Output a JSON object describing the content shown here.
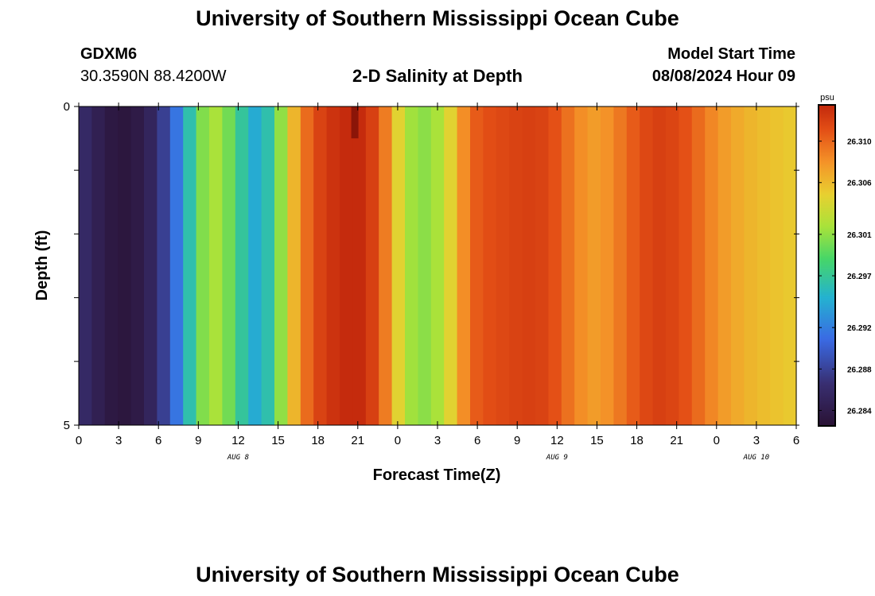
{
  "page": {
    "title": "University of Southern Mississippi Ocean Cube",
    "footer_title": "University of Southern Mississippi Ocean Cube"
  },
  "header": {
    "station_id": "GDXM6",
    "station_coords": "30.3590N  88.4200W",
    "subtitle": "2-D Salinity at Depth",
    "start_label": "Model Start Time",
    "start_value": "08/08/2024 Hour 09"
  },
  "chart_data": {
    "type": "heatmap",
    "title": "2-D Salinity at Depth",
    "xlabel": "Forecast Time(Z)",
    "ylabel": "Depth (ft)",
    "x_tick_labels": [
      "0",
      "3",
      "6",
      "9",
      "12",
      "15",
      "18",
      "21",
      "0",
      "3",
      "6",
      "9",
      "12",
      "15",
      "18",
      "21",
      "0",
      "3",
      "6"
    ],
    "x_date_labels": [
      {
        "label": "AUG 8",
        "tick_index": 4
      },
      {
        "label": "AUG 9",
        "tick_index": 12
      },
      {
        "label": "AUG 10",
        "tick_index": 17
      }
    ],
    "x_range_hours": [
      0,
      54
    ],
    "y_tick_labels": [
      {
        "label": "0",
        "depth": 0
      },
      {
        "label": "5",
        "depth": 5
      }
    ],
    "ylim": [
      0,
      5
    ],
    "colorbar": {
      "unit": "psu",
      "ticks": [
        "26.310",
        "26.306",
        "26.301",
        "26.297",
        "26.292",
        "26.288",
        "26.284"
      ],
      "tick_values": [
        26.31,
        26.306,
        26.301,
        26.297,
        26.292,
        26.288,
        26.284
      ],
      "range": [
        26.2825,
        26.3135
      ]
    },
    "series": [
      {
        "hours": [
          0,
          1,
          2,
          3,
          4,
          5,
          6,
          7,
          8,
          9,
          10,
          11,
          12,
          13,
          14,
          15,
          16,
          17,
          18,
          19,
          20,
          21,
          22,
          23,
          24,
          25,
          26,
          27,
          28,
          29,
          30,
          31,
          32,
          33,
          34,
          35,
          36,
          37,
          38,
          39,
          40,
          41,
          42,
          43,
          44,
          45,
          46,
          47,
          48,
          49,
          50,
          51,
          52,
          53,
          54
        ],
        "salinity": [
          26.2858,
          26.2845,
          26.2835,
          26.2832,
          26.2838,
          26.2852,
          26.2878,
          26.2915,
          26.2962,
          26.3005,
          26.3018,
          26.3,
          26.2968,
          26.2945,
          26.2962,
          26.301,
          26.3062,
          26.3098,
          26.3118,
          26.3128,
          26.3133,
          26.3133,
          26.312,
          26.309,
          26.3045,
          26.3015,
          26.3008,
          26.3018,
          26.3045,
          26.3082,
          26.3105,
          26.3112,
          26.3115,
          26.3118,
          26.312,
          26.3118,
          26.311,
          26.3095,
          26.3082,
          26.3075,
          26.308,
          26.3092,
          26.3105,
          26.3115,
          26.312,
          26.3117,
          26.311,
          26.3098,
          26.3085,
          26.3075,
          26.3068,
          26.3062,
          26.3058,
          26.3055,
          26.3052
        ]
      }
    ],
    "annotations": [
      {
        "hour_start": 21,
        "hour_end": 21.5,
        "depth_start": 0,
        "depth_end": 0.5,
        "salinity": 26.3145
      }
    ]
  }
}
